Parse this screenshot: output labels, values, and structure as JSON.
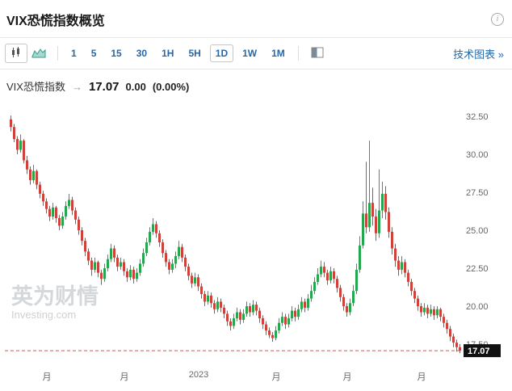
{
  "header": {
    "title": "VIX恐慌指数概览"
  },
  "icons": {
    "info": "i",
    "arrow": "→"
  },
  "toolbar": {
    "chart_types": [
      {
        "label": "candlestick",
        "selected": true
      },
      {
        "label": "area-line",
        "selected": false
      }
    ],
    "intervals": [
      {
        "label": "1",
        "selected": false
      },
      {
        "label": "5",
        "selected": false
      },
      {
        "label": "15",
        "selected": false
      },
      {
        "label": "30",
        "selected": false
      },
      {
        "label": "1H",
        "selected": false
      },
      {
        "label": "5H",
        "selected": false
      },
      {
        "label": "1D",
        "selected": true
      },
      {
        "label": "1W",
        "selected": false
      },
      {
        "label": "1M",
        "selected": false
      }
    ],
    "technical_chart_link": "技术图表 »"
  },
  "instrument": {
    "name": "VIX恐慌指数",
    "price": "17.07",
    "change": "0.00",
    "change_pct": "(0.00%)"
  },
  "watermark": {
    "brand": "英为财情",
    "site": "Investing.com"
  },
  "chart_data": {
    "type": "candlestick",
    "symbol": "VIX恐慌指数",
    "interval": "1D",
    "last_price": 17.07,
    "last_price_label": "17.07",
    "y_axis": {
      "ticks": [
        "32.50",
        "30.00",
        "27.50",
        "25.00",
        "22.50",
        "20.00",
        "17.50"
      ],
      "min": 16.9,
      "max": 32.9
    },
    "x_axis": {
      "labels": [
        "月",
        "月",
        "2023",
        "月",
        "月",
        "月"
      ],
      "label_indices": [
        11,
        35,
        58,
        82,
        104,
        127
      ]
    },
    "colors": {
      "up": "#25a750",
      "down": "#d1413b",
      "last_price_line": "#c0605a",
      "tag_bg": "#111111",
      "tag_text": "#ffffff",
      "axis_text": "#666666"
    },
    "ohlc_format": [
      "open",
      "high",
      "low",
      "close"
    ],
    "ohlc": [
      [
        32.3,
        32.55,
        31.5,
        31.8
      ],
      [
        31.8,
        32.0,
        30.8,
        31.0
      ],
      [
        31.0,
        31.2,
        30.0,
        30.3
      ],
      [
        30.3,
        31.3,
        30.1,
        30.9
      ],
      [
        30.9,
        31.0,
        29.4,
        29.6
      ],
      [
        29.6,
        29.9,
        28.7,
        29.0
      ],
      [
        29.0,
        29.2,
        28.0,
        28.3
      ],
      [
        28.3,
        29.3,
        28.1,
        28.9
      ],
      [
        28.9,
        29.0,
        27.7,
        28.0
      ],
      [
        28.0,
        28.2,
        27.1,
        27.4
      ],
      [
        27.4,
        27.6,
        26.6,
        26.9
      ],
      [
        26.9,
        27.1,
        26.1,
        26.4
      ],
      [
        26.4,
        26.6,
        25.6,
        25.9
      ],
      [
        25.9,
        26.8,
        25.7,
        26.5
      ],
      [
        26.5,
        26.6,
        25.5,
        25.8
      ],
      [
        25.8,
        26.0,
        25.0,
        25.3
      ],
      [
        25.3,
        26.2,
        25.1,
        25.9
      ],
      [
        25.9,
        26.9,
        25.7,
        26.6
      ],
      [
        26.6,
        27.4,
        26.4,
        27.0
      ],
      [
        27.0,
        27.2,
        26.0,
        26.3
      ],
      [
        26.3,
        26.5,
        25.4,
        25.7
      ],
      [
        25.7,
        25.9,
        24.7,
        25.0
      ],
      [
        25.0,
        25.2,
        24.0,
        24.3
      ],
      [
        24.3,
        24.5,
        23.3,
        23.6
      ],
      [
        23.6,
        23.8,
        22.7,
        23.0
      ],
      [
        23.0,
        23.2,
        22.0,
        22.4
      ],
      [
        22.4,
        23.2,
        22.2,
        22.9
      ],
      [
        22.9,
        23.0,
        21.9,
        22.2
      ],
      [
        22.2,
        22.4,
        21.4,
        21.8
      ],
      [
        21.8,
        22.8,
        21.6,
        22.5
      ],
      [
        22.5,
        23.4,
        22.3,
        23.1
      ],
      [
        23.1,
        24.1,
        22.9,
        23.8
      ],
      [
        23.8,
        24.0,
        22.9,
        23.2
      ],
      [
        23.2,
        23.4,
        22.3,
        22.6
      ],
      [
        22.6,
        23.2,
        22.4,
        22.9
      ],
      [
        22.9,
        23.1,
        22.0,
        22.3
      ],
      [
        22.3,
        22.5,
        21.6,
        21.9
      ],
      [
        21.9,
        22.7,
        21.7,
        22.4
      ],
      [
        22.4,
        22.6,
        21.5,
        21.8
      ],
      [
        21.8,
        22.5,
        21.6,
        22.2
      ],
      [
        22.2,
        23.1,
        22.0,
        22.8
      ],
      [
        22.8,
        23.8,
        22.6,
        23.5
      ],
      [
        23.5,
        24.5,
        23.3,
        24.2
      ],
      [
        24.2,
        25.2,
        24.0,
        24.9
      ],
      [
        24.9,
        25.8,
        24.7,
        25.4
      ],
      [
        25.4,
        25.6,
        24.5,
        24.8
      ],
      [
        24.8,
        25.0,
        23.9,
        24.2
      ],
      [
        24.2,
        24.4,
        23.2,
        23.5
      ],
      [
        23.5,
        23.7,
        22.6,
        22.9
      ],
      [
        22.9,
        23.1,
        22.1,
        22.4
      ],
      [
        22.4,
        23.1,
        22.2,
        22.8
      ],
      [
        22.8,
        23.6,
        22.5,
        23.3
      ],
      [
        23.3,
        24.3,
        23.1,
        23.9
      ],
      [
        23.9,
        24.1,
        22.9,
        23.2
      ],
      [
        23.2,
        23.4,
        22.3,
        22.6
      ],
      [
        22.6,
        22.8,
        21.7,
        22.0
      ],
      [
        22.0,
        22.2,
        21.2,
        21.5
      ],
      [
        21.5,
        22.2,
        21.3,
        21.9
      ],
      [
        21.9,
        22.1,
        21.0,
        21.3
      ],
      [
        21.3,
        21.5,
        20.5,
        20.8
      ],
      [
        20.8,
        21.0,
        20.0,
        20.3
      ],
      [
        20.3,
        21.0,
        20.1,
        20.7
      ],
      [
        20.7,
        20.9,
        19.9,
        20.2
      ],
      [
        20.2,
        20.4,
        19.5,
        19.8
      ],
      [
        19.8,
        20.6,
        19.6,
        20.3
      ],
      [
        20.3,
        20.5,
        19.6,
        19.9
      ],
      [
        19.9,
        20.1,
        19.2,
        19.5
      ],
      [
        19.5,
        19.7,
        18.7,
        19.0
      ],
      [
        19.0,
        19.2,
        18.4,
        18.7
      ],
      [
        18.7,
        19.5,
        18.5,
        19.2
      ],
      [
        19.2,
        19.9,
        19.0,
        19.6
      ],
      [
        19.6,
        19.8,
        18.8,
        19.1
      ],
      [
        19.1,
        19.8,
        18.9,
        19.5
      ],
      [
        19.5,
        20.3,
        19.3,
        20.0
      ],
      [
        20.0,
        20.2,
        19.3,
        19.6
      ],
      [
        19.6,
        20.4,
        19.4,
        20.1
      ],
      [
        20.1,
        20.3,
        19.4,
        19.7
      ],
      [
        19.7,
        19.9,
        18.9,
        19.2
      ],
      [
        19.2,
        19.4,
        18.5,
        18.8
      ],
      [
        18.8,
        19.0,
        18.1,
        18.4
      ],
      [
        18.4,
        18.6,
        17.9,
        18.1
      ],
      [
        18.1,
        18.3,
        17.65,
        17.9
      ],
      [
        17.9,
        18.7,
        17.75,
        18.4
      ],
      [
        18.4,
        19.2,
        18.2,
        18.9
      ],
      [
        18.9,
        19.6,
        18.7,
        19.3
      ],
      [
        19.3,
        19.5,
        18.5,
        18.8
      ],
      [
        18.8,
        19.5,
        18.6,
        19.2
      ],
      [
        19.2,
        20.0,
        19.0,
        19.7
      ],
      [
        19.7,
        19.9,
        19.0,
        19.3
      ],
      [
        19.3,
        20.1,
        19.1,
        19.8
      ],
      [
        19.8,
        20.6,
        19.6,
        20.3
      ],
      [
        20.3,
        20.5,
        19.6,
        19.9
      ],
      [
        19.9,
        20.8,
        19.7,
        20.5
      ],
      [
        20.5,
        21.4,
        20.3,
        21.0
      ],
      [
        21.0,
        21.9,
        20.8,
        21.6
      ],
      [
        21.6,
        22.5,
        21.4,
        22.1
      ],
      [
        22.1,
        23.0,
        21.9,
        22.6
      ],
      [
        22.6,
        22.9,
        21.9,
        22.2
      ],
      [
        22.2,
        22.4,
        21.4,
        21.7
      ],
      [
        21.7,
        22.6,
        21.5,
        22.3
      ],
      [
        22.3,
        22.5,
        21.5,
        21.8
      ],
      [
        21.8,
        22.0,
        20.9,
        21.2
      ],
      [
        21.2,
        21.4,
        20.3,
        20.6
      ],
      [
        20.6,
        20.8,
        19.7,
        20.0
      ],
      [
        20.0,
        20.2,
        19.3,
        19.6
      ],
      [
        19.6,
        20.5,
        19.4,
        20.2
      ],
      [
        20.2,
        21.4,
        20.0,
        21.0
      ],
      [
        21.0,
        22.8,
        20.8,
        22.4
      ],
      [
        22.4,
        24.6,
        22.2,
        24.0
      ],
      [
        24.0,
        26.9,
        23.8,
        26.1
      ],
      [
        26.1,
        29.5,
        24.8,
        25.2
      ],
      [
        25.2,
        30.9,
        24.9,
        26.8
      ],
      [
        26.8,
        27.8,
        25.3,
        25.9
      ],
      [
        25.9,
        26.4,
        24.3,
        24.8
      ],
      [
        24.8,
        29.0,
        24.5,
        26.3
      ],
      [
        26.3,
        28.2,
        25.8,
        27.4
      ],
      [
        27.4,
        27.9,
        25.7,
        26.2
      ],
      [
        26.2,
        26.5,
        24.5,
        24.9
      ],
      [
        24.9,
        25.2,
        23.4,
        23.8
      ],
      [
        23.8,
        24.1,
        22.6,
        23.0
      ],
      [
        23.0,
        23.3,
        22.0,
        22.4
      ],
      [
        22.4,
        23.3,
        22.1,
        22.9
      ],
      [
        22.9,
        23.1,
        21.9,
        22.2
      ],
      [
        22.2,
        22.4,
        21.3,
        21.6
      ],
      [
        21.6,
        21.8,
        20.7,
        21.0
      ],
      [
        21.0,
        21.2,
        20.2,
        20.5
      ],
      [
        20.5,
        20.7,
        19.7,
        20.0
      ],
      [
        20.0,
        20.2,
        19.3,
        19.6
      ],
      [
        19.6,
        20.2,
        19.4,
        19.9
      ],
      [
        19.9,
        20.1,
        19.2,
        19.5
      ],
      [
        19.5,
        20.1,
        19.3,
        19.8
      ],
      [
        19.8,
        20.0,
        19.1,
        19.4
      ],
      [
        19.4,
        20.0,
        19.2,
        19.8
      ],
      [
        19.8,
        19.9,
        19.0,
        19.3
      ],
      [
        19.3,
        19.5,
        18.6,
        18.9
      ],
      [
        18.9,
        19.1,
        18.2,
        18.5
      ],
      [
        18.5,
        18.7,
        17.7,
        18.0
      ],
      [
        18.0,
        18.2,
        17.3,
        17.6
      ],
      [
        17.6,
        17.8,
        17.0,
        17.3
      ],
      [
        17.3,
        17.5,
        16.9,
        17.07
      ]
    ]
  }
}
